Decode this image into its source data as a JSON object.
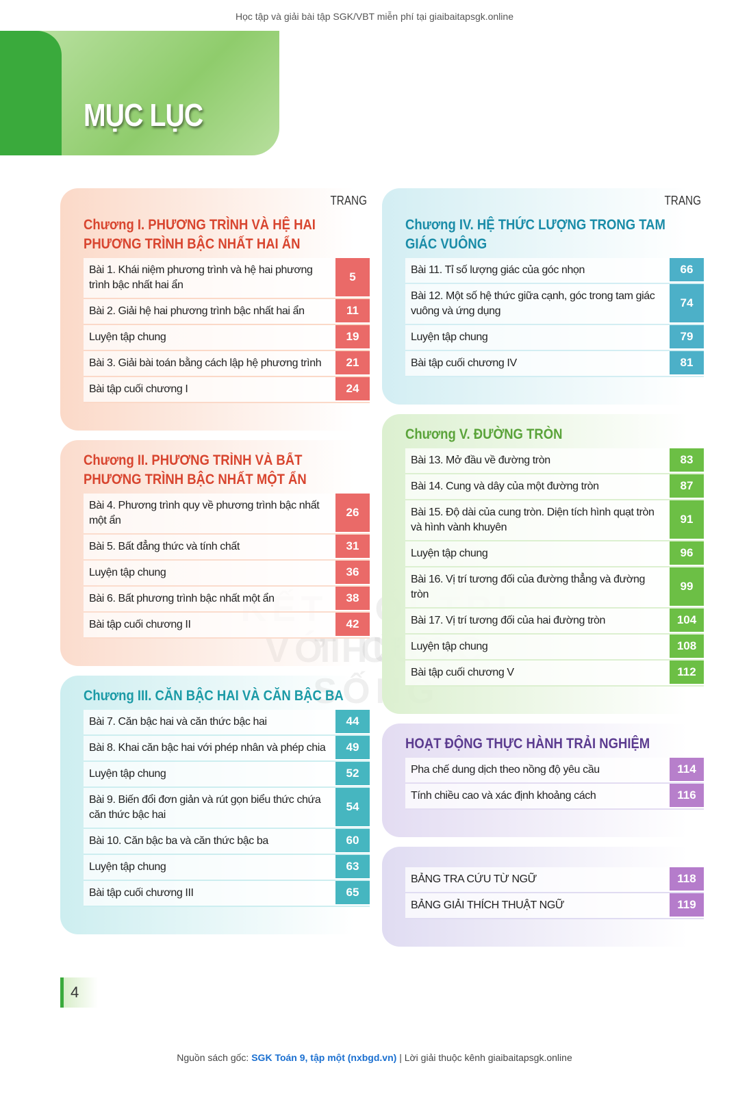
{
  "header": "Học tập và giải bài tập SGK/VBT miễn phí tại giaibaitapsgk.online",
  "title": "MỤC LỤC",
  "columns": [
    {
      "page_label": "TRANG",
      "sections": [
        {
          "title": "Chương I. PHƯƠNG TRÌNH VÀ HỆ HAI PHƯƠNG TRÌNH BẬC NHẤT HAI ẨN",
          "items": [
            {
              "label": "Bài 1. Khái niệm phương trình và hệ hai phương trình bậc nhất hai ẩn",
              "page": 5
            },
            {
              "label": "Bài 2. Giải hệ hai phương trình bậc nhất hai ẩn",
              "page": 11
            },
            {
              "label": "Luyện tập chung",
              "page": 19
            },
            {
              "label": "Bài 3. Giải bài toán bằng cách lập hệ phương trình",
              "page": 21
            },
            {
              "label": "Bài tập cuối chương I",
              "page": 24
            }
          ]
        },
        {
          "title": "Chương II. PHƯƠNG TRÌNH VÀ BẤT PHƯƠNG TRÌNH BẬC NHẤT MỘT ẨN",
          "items": [
            {
              "label": "Bài 4. Phương trình quy về phương trình bậc nhất một ẩn",
              "page": 26
            },
            {
              "label": "Bài 5. Bất đẳng thức và tính chất",
              "page": 31
            },
            {
              "label": "Luyện tập chung",
              "page": 36
            },
            {
              "label": "Bài 6. Bất phương trình bậc nhất một ẩn",
              "page": 38
            },
            {
              "label": "Bài tập cuối chương II",
              "page": 42
            }
          ]
        },
        {
          "title": "Chương III. CĂN BẬC HAI VÀ CĂN BẬC BA",
          "items": [
            {
              "label": "Bài 7. Căn bậc hai và căn thức bậc hai",
              "page": 44
            },
            {
              "label": "Bài 8. Khai căn bậc hai với phép nhân và phép chia",
              "page": 49
            },
            {
              "label": "Luyện tập chung",
              "page": 52
            },
            {
              "label": "Bài 9. Biến đổi đơn giản và rút gọn biểu thức chứa căn thức bậc hai",
              "page": 54
            },
            {
              "label": "Bài 10. Căn bậc ba và căn thức bậc ba",
              "page": 60
            },
            {
              "label": "Luyện tập chung",
              "page": 63
            },
            {
              "label": "Bài tập cuối chương III",
              "page": 65
            }
          ]
        }
      ]
    },
    {
      "page_label": "TRANG",
      "sections": [
        {
          "title": "Chương IV. HỆ THỨC LƯỢNG TRONG TAM GIÁC VUÔNG",
          "items": [
            {
              "label": "Bài 11. Tỉ số lượng giác của góc nhọn",
              "page": 66
            },
            {
              "label": "Bài 12. Một số hệ thức giữa cạnh, góc trong tam giác vuông và ứng dụng",
              "page": 74
            },
            {
              "label": "Luyện tập chung",
              "page": 79
            },
            {
              "label": "Bài tập cuối chương IV",
              "page": 81
            }
          ]
        },
        {
          "title": "Chương V. ĐƯỜNG TRÒN",
          "items": [
            {
              "label": "Bài 13. Mở đầu về đường tròn",
              "page": 83
            },
            {
              "label": "Bài 14. Cung và dây của một đường tròn",
              "page": 87
            },
            {
              "label": "Bài 15. Độ dài của cung tròn. Diện tích hình quạt tròn và hình vành khuyên",
              "page": 91
            },
            {
              "label": "Luyện tập chung",
              "page": 96
            },
            {
              "label": "Bài 16. Vị trí tương đối của đường thẳng và đường tròn",
              "page": 99
            },
            {
              "label": "Bài 17. Vị trí tương đối của hai đường tròn",
              "page": 104
            },
            {
              "label": "Luyện tập chung",
              "page": 108
            },
            {
              "label": "Bài tập cuối chương V",
              "page": 112
            }
          ]
        },
        {
          "title": "HOẠT ĐỘNG THỰC HÀNH TRẢI NGHIỆM",
          "items": [
            {
              "label": "Pha chế dung dịch theo nồng độ yêu cầu",
              "page": 114
            },
            {
              "label": "Tính chiều cao và xác định khoảng cách",
              "page": 116
            }
          ]
        },
        {
          "items": [
            {
              "label": "BẢNG TRA CỨU TỪ NGỮ",
              "page": 118
            },
            {
              "label": "BẢNG GIẢI THÍCH THUẬT NGỮ",
              "page": 119
            }
          ]
        }
      ]
    }
  ],
  "watermark": [
    "KẾT NỐI TRI THỨC",
    "VỚI CUỘC SỐNG"
  ],
  "page_number": "4",
  "footer": {
    "prefix": "Nguồn sách gốc:",
    "link": "SGK Toán 9, tập một (nxbgd.vn)",
    "suffix": "| Lời giải thuộc kênh giaibaitapsgk.online"
  }
}
